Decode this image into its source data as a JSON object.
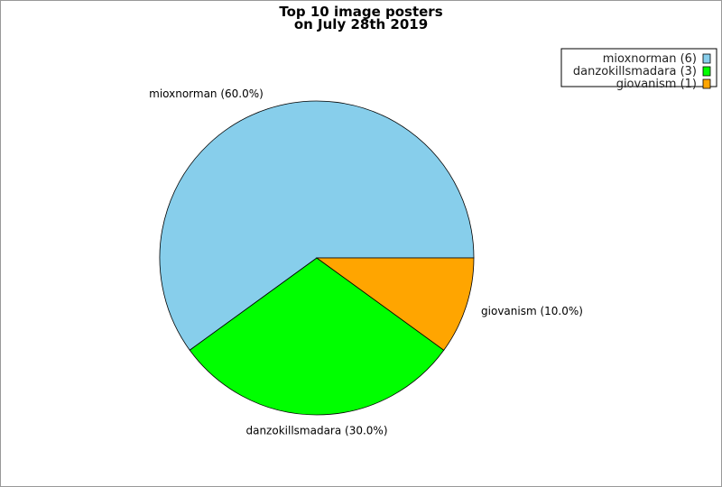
{
  "chart_data": {
    "type": "pie",
    "title": [
      "Top 10 image posters",
      "on July 28th 2019"
    ],
    "slices": [
      {
        "label": "mioxnorman",
        "count": 6,
        "percent": 60.0,
        "color": "#87ceeb",
        "pie_label": "mioxnorman (60.0%)",
        "legend_label": "mioxnorman (6)"
      },
      {
        "label": "danzokillsmadara",
        "count": 3,
        "percent": 30.0,
        "color": "#00ff00",
        "pie_label": "danzokillsmadara (30.0%)",
        "legend_label": "danzokillsmadara (3)"
      },
      {
        "label": "giovanism",
        "count": 1,
        "percent": 10.0,
        "color": "#ffa500",
        "pie_label": "giovanism (10.0%)",
        "legend_label": "giovanism (1)"
      }
    ],
    "start_angle": "3 o'clock, counterclockwise",
    "legend_position": "top-right"
  }
}
